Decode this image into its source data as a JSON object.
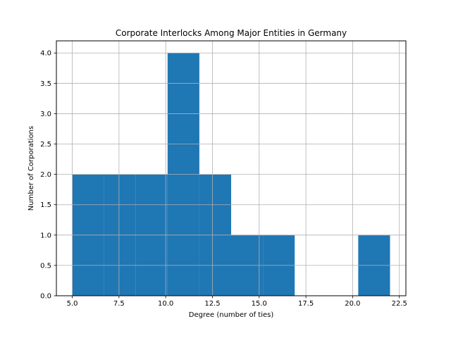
{
  "chart_data": {
    "type": "bar",
    "title": "Corporate Interlocks Among Major Entities in Germany",
    "xlabel": "Degree (number of ties)",
    "ylabel": "Number of Corporations",
    "xlim": [
      4.15,
      22.85
    ],
    "ylim": [
      0,
      4.2
    ],
    "grid": true,
    "bar_color": "#1f77b4",
    "bins": [
      {
        "x0": 5.0,
        "x1": 6.7,
        "count": 2
      },
      {
        "x0": 6.7,
        "x1": 8.4,
        "count": 2
      },
      {
        "x0": 8.4,
        "x1": 10.1,
        "count": 2
      },
      {
        "x0": 10.1,
        "x1": 11.8,
        "count": 4
      },
      {
        "x0": 11.8,
        "x1": 13.5,
        "count": 2
      },
      {
        "x0": 13.5,
        "x1": 15.2,
        "count": 1
      },
      {
        "x0": 15.2,
        "x1": 16.9,
        "count": 1
      },
      {
        "x0": 16.9,
        "x1": 18.6,
        "count": 0
      },
      {
        "x0": 18.6,
        "x1": 20.3,
        "count": 0
      },
      {
        "x0": 20.3,
        "x1": 22.0,
        "count": 1
      }
    ],
    "x_ticks": [
      {
        "value": 5.0,
        "label": "5.0"
      },
      {
        "value": 7.5,
        "label": "7.5"
      },
      {
        "value": 10.0,
        "label": "10.0"
      },
      {
        "value": 12.5,
        "label": "12.5"
      },
      {
        "value": 15.0,
        "label": "15.0"
      },
      {
        "value": 17.5,
        "label": "17.5"
      },
      {
        "value": 20.0,
        "label": "20.0"
      },
      {
        "value": 22.5,
        "label": "22.5"
      }
    ],
    "y_ticks": [
      {
        "value": 0.0,
        "label": "0.0"
      },
      {
        "value": 0.5,
        "label": "0.5"
      },
      {
        "value": 1.0,
        "label": "1.0"
      },
      {
        "value": 1.5,
        "label": "1.5"
      },
      {
        "value": 2.0,
        "label": "2.0"
      },
      {
        "value": 2.5,
        "label": "2.5"
      },
      {
        "value": 3.0,
        "label": "3.0"
      },
      {
        "value": 3.5,
        "label": "3.5"
      },
      {
        "value": 4.0,
        "label": "4.0"
      }
    ]
  }
}
